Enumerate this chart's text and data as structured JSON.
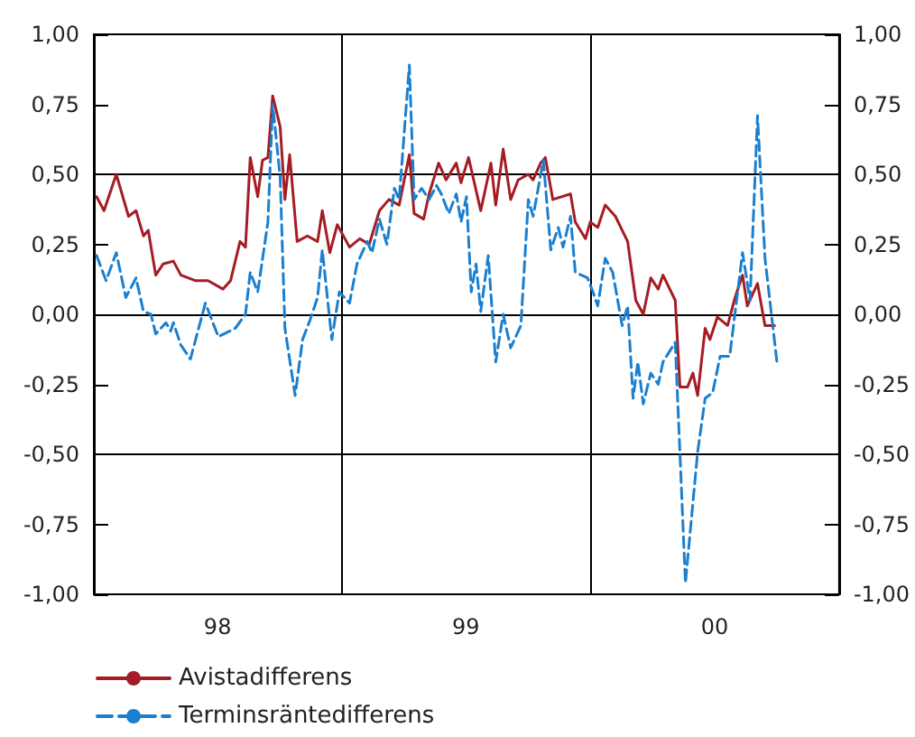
{
  "chart_data": {
    "type": "line",
    "x": [
      "1998-01-05",
      "1998-01-16",
      "1998-02-03",
      "1998-02-21",
      "1998-03-04",
      "1998-03-15",
      "1998-03-22",
      "1998-04-02",
      "1998-04-13",
      "1998-04-28",
      "1998-05-09",
      "1998-05-31",
      "1998-06-18",
      "1998-07-10",
      "1998-07-21",
      "1998-08-04",
      "1998-08-12",
      "1998-08-19",
      "1998-08-30",
      "1998-09-06",
      "1998-09-14",
      "1998-09-21",
      "1998-10-02",
      "1998-10-09",
      "1998-10-16",
      "1998-10-27",
      "1998-11-11",
      "1998-11-26",
      "1998-12-03",
      "1998-12-14",
      "1998-12-25",
      "1999-01-12",
      "1999-01-27",
      "1999-02-10",
      "1999-02-25",
      "1999-03-11",
      "1999-03-26",
      "1999-04-10",
      "1999-04-17",
      "1999-05-01",
      "1999-05-09",
      "1999-05-23",
      "1999-06-03",
      "1999-06-18",
      "1999-06-25",
      "1999-07-06",
      "1999-07-24",
      "1999-08-08",
      "1999-08-15",
      "1999-08-26",
      "1999-09-06",
      "1999-09-17",
      "1999-10-02",
      "1999-10-09",
      "1999-10-20",
      "1999-10-27",
      "1999-11-07",
      "1999-12-03",
      "1999-12-10",
      "1999-12-25",
      "2000-01-01",
      "2000-01-12",
      "2000-01-23",
      "2000-02-07",
      "2000-02-25",
      "2000-03-08",
      "2000-03-19",
      "2000-03-30",
      "2000-04-10",
      "2000-04-17",
      "2000-05-05",
      "2000-05-12",
      "2000-05-23",
      "2000-05-31",
      "2000-06-07",
      "2000-06-18",
      "2000-06-25",
      "2000-07-06",
      "2000-07-21",
      "2000-08-01",
      "2000-08-12",
      "2000-08-19",
      "2000-09-03",
      "2000-09-14",
      "2000-09-28"
    ],
    "series": [
      {
        "name": "Avistadifferens",
        "color": "#a51c24",
        "line_style": "solid",
        "values": [
          0.42,
          0.37,
          0.5,
          0.35,
          0.37,
          0.28,
          0.3,
          0.14,
          0.18,
          0.19,
          0.14,
          0.12,
          0.12,
          0.09,
          0.12,
          0.26,
          0.24,
          0.56,
          0.42,
          0.55,
          0.56,
          0.78,
          0.67,
          0.41,
          0.57,
          0.26,
          0.28,
          0.26,
          0.37,
          0.22,
          0.32,
          0.24,
          0.27,
          0.25,
          0.37,
          0.41,
          0.39,
          0.57,
          0.36,
          0.34,
          0.43,
          0.54,
          0.48,
          0.54,
          0.47,
          0.56,
          0.37,
          0.54,
          0.39,
          0.59,
          0.41,
          0.48,
          0.5,
          0.48,
          0.54,
          0.56,
          0.41,
          0.43,
          0.33,
          0.27,
          0.33,
          0.31,
          0.39,
          0.35,
          0.26,
          0.05,
          0.0,
          0.13,
          0.09,
          0.14,
          0.05,
          -0.26,
          -0.26,
          -0.21,
          -0.29,
          -0.05,
          -0.09,
          -0.01,
          -0.04,
          0.06,
          0.14,
          0.03,
          0.11,
          -0.04,
          -0.04
        ]
      },
      {
        "name": "Terminsräntedifferens",
        "color": "#1a7fcf",
        "line_style": "dashed",
        "x": [
          "1998-01-05",
          "1998-01-19",
          "1998-02-03",
          "1998-02-17",
          "1998-03-04",
          "1998-03-15",
          "1998-03-26",
          "1998-04-02",
          "1998-04-17",
          "1998-04-24",
          "1998-04-28",
          "1998-05-09",
          "1998-05-23",
          "1998-06-03",
          "1998-06-14",
          "1998-07-03",
          "1998-07-28",
          "1998-08-12",
          "1998-08-19",
          "1998-08-30",
          "1998-09-14",
          "1998-09-21",
          "1998-10-02",
          "1998-10-09",
          "1998-10-24",
          "1998-11-04",
          "1998-11-15",
          "1998-11-26",
          "1998-12-03",
          "1998-12-17",
          "1998-12-28",
          "1999-01-12",
          "1999-01-23",
          "1999-02-07",
          "1999-02-14",
          "1999-02-25",
          "1999-03-08",
          "1999-03-19",
          "1999-03-26",
          "1999-04-10",
          "1999-04-17",
          "1999-04-28",
          "1999-05-09",
          "1999-05-20",
          "1999-05-27",
          "1999-06-07",
          "1999-06-18",
          "1999-06-25",
          "1999-07-03",
          "1999-07-10",
          "1999-07-17",
          "1999-07-24",
          "1999-08-04",
          "1999-08-15",
          "1999-08-26",
          "1999-09-06",
          "1999-09-21",
          "1999-10-02",
          "1999-10-09",
          "1999-10-24",
          "1999-11-04",
          "1999-11-15",
          "1999-11-22",
          "1999-12-03",
          "1999-12-10",
          "1999-12-28",
          "2000-01-05",
          "2000-01-12",
          "2000-01-23",
          "2000-02-03",
          "2000-02-17",
          "2000-02-25",
          "2000-03-04",
          "2000-03-11",
          "2000-03-19",
          "2000-03-30",
          "2000-04-10",
          "2000-04-17",
          "2000-05-05",
          "2000-05-20",
          "2000-06-07",
          "2000-06-18",
          "2000-06-29",
          "2000-07-10",
          "2000-07-24",
          "2000-08-12",
          "2000-08-23",
          "2000-09-03",
          "2000-09-14",
          "2000-10-02"
        ],
        "values": [
          0.21,
          0.12,
          0.22,
          0.06,
          0.13,
          0.01,
          0.0,
          -0.07,
          -0.03,
          -0.06,
          -0.03,
          -0.11,
          -0.16,
          -0.06,
          0.04,
          -0.08,
          -0.05,
          0.0,
          0.15,
          0.08,
          0.33,
          0.75,
          0.49,
          -0.05,
          -0.29,
          -0.09,
          -0.02,
          0.06,
          0.23,
          -0.09,
          0.08,
          0.04,
          0.18,
          0.26,
          0.22,
          0.34,
          0.25,
          0.45,
          0.41,
          0.89,
          0.41,
          0.45,
          0.41,
          0.46,
          0.43,
          0.36,
          0.43,
          0.33,
          0.42,
          0.08,
          0.18,
          0.01,
          0.21,
          -0.17,
          0.0,
          -0.12,
          -0.04,
          0.41,
          0.35,
          0.55,
          0.23,
          0.31,
          0.24,
          0.35,
          0.15,
          0.13,
          0.08,
          0.03,
          0.2,
          0.15,
          -0.04,
          0.03,
          -0.3,
          -0.17,
          -0.32,
          -0.21,
          -0.25,
          -0.17,
          -0.1,
          -0.96,
          -0.49,
          -0.3,
          -0.28,
          -0.15,
          -0.15,
          0.22,
          0.05,
          0.71,
          0.2,
          -0.18
        ]
      }
    ],
    "xlim": [
      "1998-01-01",
      "2001-01-01"
    ],
    "xticks": [
      {
        "value": "1998-07-02",
        "label": "98"
      },
      {
        "value": "1999-07-02",
        "label": "99"
      },
      {
        "value": "2000-07-02",
        "label": "00"
      }
    ],
    "ylim": [
      -1,
      1
    ],
    "yticks": [
      {
        "value": -1,
        "label": "-1,00"
      },
      {
        "value": -0.75,
        "label": "-0,75"
      },
      {
        "value": -0.5,
        "label": "-0,50"
      },
      {
        "value": -0.25,
        "label": "-0,25"
      },
      {
        "value": 0,
        "label": "0,00"
      },
      {
        "value": 0.25,
        "label": "0,25"
      },
      {
        "value": 0.5,
        "label": "0,50"
      },
      {
        "value": 0.75,
        "label": "0,75"
      },
      {
        "value": 1,
        "label": "1,00"
      }
    ],
    "y2lim": [
      -1,
      1
    ],
    "y2ticks": [
      {
        "value": -1,
        "label": "-1,00"
      },
      {
        "value": -0.75,
        "label": "-0,75"
      },
      {
        "value": -0.5,
        "label": "-0,50"
      },
      {
        "value": -0.25,
        "label": "-0,25"
      },
      {
        "value": 0,
        "label": "0,00"
      },
      {
        "value": 0.25,
        "label": "0,25"
      },
      {
        "value": 0.5,
        "label": "0,50"
      },
      {
        "value": 0.75,
        "label": "0,75"
      },
      {
        "value": 1,
        "label": "1,00"
      }
    ],
    "ref_lines": [
      {
        "axis": "y",
        "value": 0.5,
        "color": "#000000"
      },
      {
        "axis": "y",
        "value": 0,
        "color": "#000000"
      },
      {
        "axis": "y",
        "value": -0.5,
        "color": "#000000"
      },
      {
        "axis": "x",
        "value": "1999-01-01",
        "color": "#000000"
      },
      {
        "axis": "x",
        "value": "2000-01-01",
        "color": "#000000"
      }
    ],
    "marker": "none",
    "legend": "bottom left"
  }
}
